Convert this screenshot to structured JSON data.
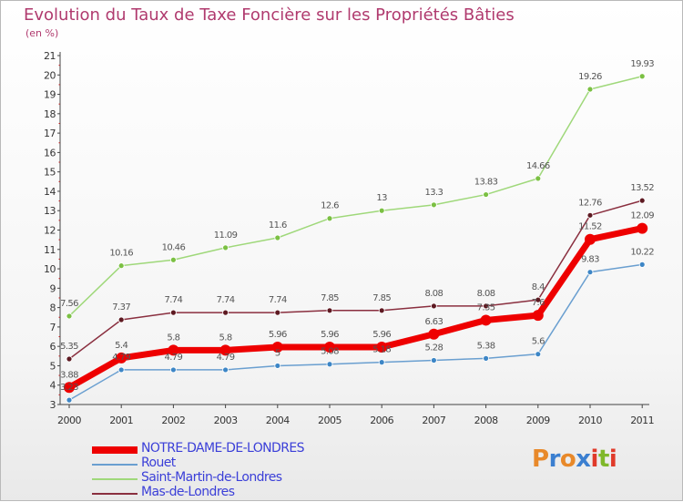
{
  "chart_data": {
    "type": "line",
    "title": "Evolution du Taux de Taxe Foncière sur les Propriétés Bâties",
    "unit_label": "(en %)",
    "categories": [
      "2000",
      "2001",
      "2002",
      "2003",
      "2004",
      "2005",
      "2006",
      "2007",
      "2008",
      "2009",
      "2010",
      "2011"
    ],
    "ylim": [
      3,
      21
    ],
    "yticks": [
      3,
      4,
      5,
      6,
      7,
      8,
      9,
      10,
      11,
      12,
      13,
      14,
      15,
      16,
      17,
      18,
      19,
      20,
      21
    ],
    "grid": false,
    "legend_position": "bottom-left",
    "series": [
      {
        "name": "Rouet",
        "color": "#6a9fd0",
        "point_color": "#3d86c6",
        "values": [
          3.23,
          4.79,
          4.79,
          4.79,
          5.0,
          5.08,
          5.18,
          5.28,
          5.38,
          5.6,
          9.83,
          10.22
        ],
        "labels": [
          "3.23",
          "4.79",
          "4.79",
          "4.79",
          "5",
          "5.08",
          "5.18",
          "5.28",
          "5.38",
          "5.6",
          "9.83",
          "10.22"
        ]
      },
      {
        "name": "Saint-Martin-de-Londres",
        "color": "#9fd87a",
        "point_color": "#7bc043",
        "values": [
          7.56,
          10.16,
          10.46,
          11.09,
          11.6,
          12.6,
          13.0,
          13.3,
          13.83,
          14.66,
          19.26,
          19.93
        ],
        "labels": [
          "7.56",
          "10.16",
          "10.46",
          "11.09",
          "11.6",
          "12.6",
          "13",
          "13.3",
          "13.83",
          "14.66",
          "19.26",
          "19.93"
        ]
      },
      {
        "name": "Mas-de-Londres",
        "color": "#8a2f3f",
        "point_color": "#5e1a22",
        "values": [
          5.35,
          7.37,
          7.74,
          7.74,
          7.74,
          7.85,
          7.85,
          8.08,
          8.08,
          8.4,
          12.76,
          13.52
        ],
        "labels": [
          "5.35",
          "7.37",
          "7.74",
          "7.74",
          "7.74",
          "7.85",
          "7.85",
          "8.08",
          "8.08",
          "8.4",
          "12.76",
          "13.52"
        ]
      },
      {
        "name": "NOTRE-DAME-DE-LONDRES",
        "color": "#ee0000",
        "point_color": "#ee0000",
        "thick": true,
        "values": [
          3.88,
          5.4,
          5.8,
          5.8,
          5.96,
          5.96,
          5.96,
          6.63,
          7.35,
          7.6,
          11.52,
          12.09
        ],
        "labels": [
          "3.88",
          "5.4",
          "5.8",
          "5.8",
          "5.96",
          "5.96",
          "5.96",
          "6.63",
          "7.35",
          "7.6",
          "11.52",
          "12.09"
        ]
      }
    ],
    "legend": [
      {
        "name": "NOTRE-DAME-DE-LONDRES",
        "color": "#ee0000",
        "thick": true
      },
      {
        "name": "Rouet",
        "color": "#6a9fd0"
      },
      {
        "name": "Saint-Martin-de-Londres",
        "color": "#9fd87a"
      },
      {
        "name": "Mas-de-Londres",
        "color": "#8a2f3f"
      }
    ]
  },
  "logo": {
    "text": "Proxiti",
    "letters": [
      "P",
      "r",
      "o",
      "x",
      "i",
      "t",
      "i"
    ],
    "colors": [
      "#e8892a",
      "#3b7fd0",
      "#e8892a",
      "#3b7fd0",
      "#e03a2a",
      "#7fb82a",
      "#e03a2a"
    ]
  }
}
